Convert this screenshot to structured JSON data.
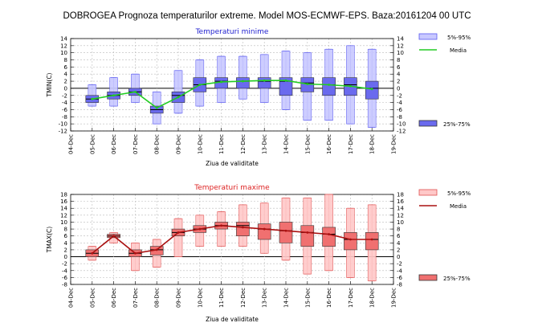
{
  "title": "DOBROGEA  Prognoza temperaturilor extreme.  Model MOS-ECMWF-EPS. Baza:20161204 00 UTC",
  "chart_data": [
    {
      "type": "box",
      "title": "Temperaturi minime",
      "title_color": "#1f1fcf",
      "ylabel": "TMIN(C)",
      "xlabel": "Ziua de validitate",
      "ylim": [
        -12,
        14
      ],
      "ytick_step": 2,
      "categories": [
        "04-Dec",
        "05-Dec",
        "06-Dec",
        "07-Dec",
        "08-Dec",
        "09-Dec",
        "10-Dec",
        "11-Dec",
        "12-Dec",
        "13-Dec",
        "14-Dec",
        "15-Dec",
        "16-Dec",
        "17-Dec",
        "18-Dec",
        "19-Dec"
      ],
      "whisker_color": "#5a5af0",
      "box_outer_fill": "#c8c8ff",
      "box_inner_fill": "#6a6aee",
      "media_color": "#22cc22",
      "boxes": [
        {
          "x": "05-Dec",
          "p5": -5,
          "q25": -4,
          "median": -3,
          "q75": -2,
          "p95": 1,
          "media": -3
        },
        {
          "x": "06-Dec",
          "p5": -5,
          "q25": -3,
          "median": -2,
          "q75": -1,
          "p95": 3,
          "media": -2
        },
        {
          "x": "07-Dec",
          "p5": -4,
          "q25": -2,
          "median": -1,
          "q75": 0,
          "p95": 4,
          "media": -1
        },
        {
          "x": "08-Dec",
          "p5": -10,
          "q25": -7,
          "median": -6,
          "q75": -5,
          "p95": -1,
          "media": -5.5
        },
        {
          "x": "09-Dec",
          "p5": -7,
          "q25": -4,
          "median": -2,
          "q75": -1,
          "p95": 5,
          "media": -2.5
        },
        {
          "x": "10-Dec",
          "p5": -5,
          "q25": -1,
          "median": 1,
          "q75": 3,
          "p95": 8,
          "media": 1
        },
        {
          "x": "11-Dec",
          "p5": -4,
          "q25": 0,
          "median": 2,
          "q75": 3,
          "p95": 9,
          "media": 1.8
        },
        {
          "x": "12-Dec",
          "p5": -3,
          "q25": 0,
          "median": 2,
          "q75": 3,
          "p95": 9,
          "media": 2
        },
        {
          "x": "13-Dec",
          "p5": -4,
          "q25": 0,
          "median": 2,
          "q75": 3,
          "p95": 9.5,
          "media": 2.2
        },
        {
          "x": "14-Dec",
          "p5": -6,
          "q25": -2,
          "median": 2,
          "q75": 3,
          "p95": 10.5,
          "media": 2.2
        },
        {
          "x": "15-Dec",
          "p5": -9,
          "q25": -1,
          "median": 1.5,
          "q75": 3,
          "p95": 10,
          "media": 1.2
        },
        {
          "x": "16-Dec",
          "p5": -9,
          "q25": -2,
          "median": 1,
          "q75": 3,
          "p95": 11,
          "media": 1
        },
        {
          "x": "17-Dec",
          "p5": -10,
          "q25": -2,
          "median": 1,
          "q75": 3,
          "p95": 12,
          "media": 0.6
        },
        {
          "x": "18-Dec",
          "p5": -11,
          "q25": -3,
          "median": 0,
          "q75": 2,
          "p95": 11,
          "media": -0.2
        }
      ],
      "legend": {
        "range_label": "5%-95%",
        "media_label": "Media",
        "iqr_label": "25%-75%"
      }
    },
    {
      "type": "box",
      "title": "Temperaturi maxime",
      "title_color": "#dd2222",
      "ylabel": "TMAX(C)",
      "xlabel": "Ziua de validitate",
      "ylim": [
        -8,
        18
      ],
      "ytick_step": 2,
      "categories": [
        "04-Dec",
        "05-Dec",
        "06-Dec",
        "07-Dec",
        "08-Dec",
        "09-Dec",
        "10-Dec",
        "11-Dec",
        "12-Dec",
        "13-Dec",
        "14-Dec",
        "15-Dec",
        "16-Dec",
        "17-Dec",
        "18-Dec",
        "19-Dec"
      ],
      "whisker_color": "#e05050",
      "box_outer_fill": "#ffc8c8",
      "box_inner_fill": "#f07070",
      "media_color": "#aa1111",
      "boxes": [
        {
          "x": "05-Dec",
          "p5": -1,
          "q25": 0,
          "median": 1,
          "q75": 2,
          "p95": 3,
          "media": 1
        },
        {
          "x": "06-Dec",
          "p5": 4,
          "q25": 5.5,
          "median": 6,
          "q75": 6.5,
          "p95": 7,
          "media": 6
        },
        {
          "x": "07-Dec",
          "p5": -4,
          "q25": 0,
          "median": 1,
          "q75": 2,
          "p95": 4,
          "media": 1
        },
        {
          "x": "08-Dec",
          "p5": -3,
          "q25": 0.5,
          "median": 2,
          "q75": 3,
          "p95": 5,
          "media": 2
        },
        {
          "x": "09-Dec",
          "p5": 0,
          "q25": 6,
          "median": 7,
          "q75": 8,
          "p95": 11,
          "media": 7
        },
        {
          "x": "10-Dec",
          "p5": 3,
          "q25": 7,
          "median": 8,
          "q75": 9,
          "p95": 12,
          "media": 8
        },
        {
          "x": "11-Dec",
          "p5": 3,
          "q25": 8,
          "median": 9,
          "q75": 10,
          "p95": 13,
          "media": 9
        },
        {
          "x": "12-Dec",
          "p5": 3,
          "q25": 6,
          "median": 9,
          "q75": 10,
          "p95": 15,
          "media": 8.5
        },
        {
          "x": "13-Dec",
          "p5": 1,
          "q25": 5,
          "median": 8,
          "q75": 9.5,
          "p95": 15.5,
          "media": 8
        },
        {
          "x": "14-Dec",
          "p5": -1,
          "q25": 4,
          "median": 7.5,
          "q75": 10,
          "p95": 17,
          "media": 7.5
        },
        {
          "x": "15-Dec",
          "p5": -5,
          "q25": 3,
          "median": 7,
          "q75": 9,
          "p95": 17,
          "media": 7
        },
        {
          "x": "16-Dec",
          "p5": -4,
          "q25": 3,
          "median": 6.5,
          "q75": 8.5,
          "p95": 18,
          "media": 6.5
        },
        {
          "x": "17-Dec",
          "p5": -6,
          "q25": 2,
          "median": 5,
          "q75": 7,
          "p95": 14,
          "media": 5
        },
        {
          "x": "18-Dec",
          "p5": -7,
          "q25": 2,
          "median": 5,
          "q75": 7,
          "p95": 15,
          "media": 5
        }
      ],
      "legend": {
        "range_label": "5%-95%",
        "media_label": "Media",
        "iqr_label": "25%-75%"
      }
    }
  ]
}
